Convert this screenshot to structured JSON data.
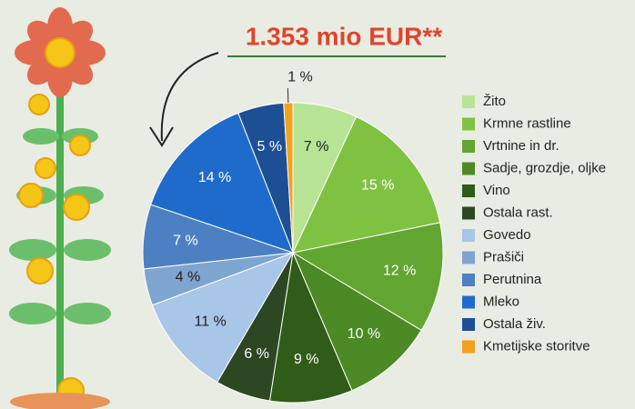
{
  "chart_data": {
    "type": "pie",
    "title": "1.353 mio EUR**",
    "categories": [
      "Žito",
      "Krmne rastline",
      "Vrtnine in dr.",
      "Sadje, grozdje, oljke",
      "Vino",
      "Ostala rast.",
      "Govedo",
      "Prašiči",
      "Perutnina",
      "Mleko",
      "Ostala živ.",
      "Kmetijske storitve"
    ],
    "values": [
      7,
      15,
      12,
      10,
      9,
      6,
      11,
      4,
      7,
      14,
      5,
      1
    ],
    "value_labels": [
      "7 %",
      "15 %",
      "12 %",
      "10 %",
      "9 %",
      "6 %",
      "11 %",
      "4 %",
      "7 %",
      "14 %",
      "5 %",
      "1 %"
    ],
    "colors": [
      "#b8e495",
      "#7fc242",
      "#62a530",
      "#4b8a24",
      "#2f5c19",
      "#2c4722",
      "#a8c6e8",
      "#7ea4d0",
      "#4c80c2",
      "#1f6bcb",
      "#1d4f94",
      "#f2a21d"
    ],
    "legend": "right"
  }
}
